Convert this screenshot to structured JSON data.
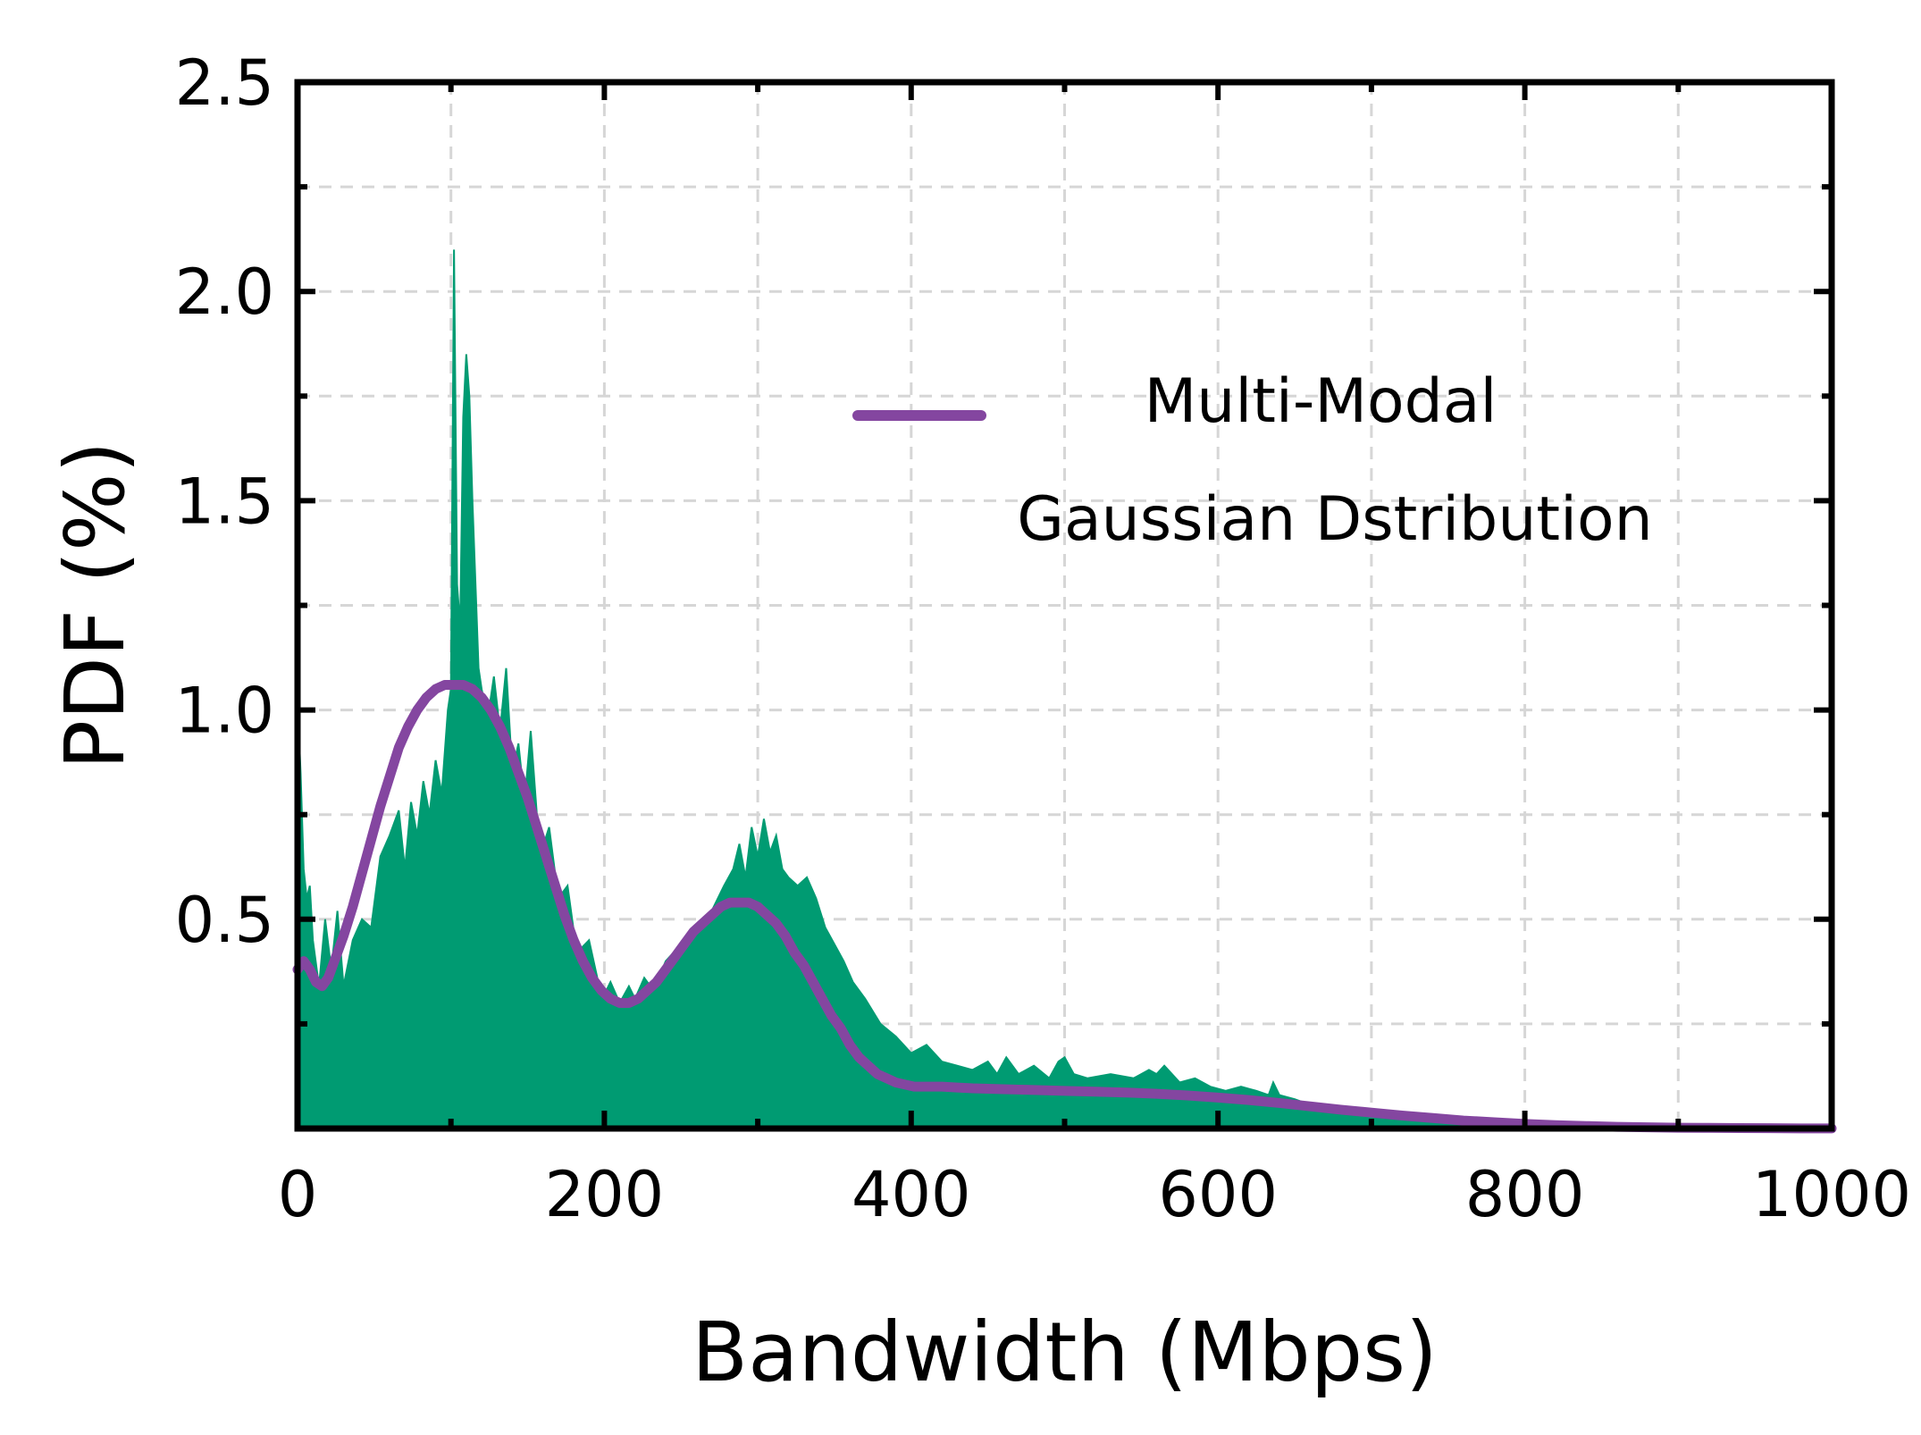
{
  "chart_data": {
    "type": "area",
    "xlabel": "Bandwidth (Mbps)",
    "ylabel": "PDF (%)",
    "xlim": [
      0,
      1000
    ],
    "ylim": [
      0,
      2.5
    ],
    "x_ticks": [
      0,
      200,
      400,
      600,
      800,
      1000
    ],
    "x_tick_labels": [
      "0",
      "200",
      "400",
      "600",
      "800",
      "1000"
    ],
    "y_ticks": [
      0.5,
      1.0,
      1.5,
      2.0,
      2.5
    ],
    "y_tick_labels": [
      "0.5",
      "1.0",
      "1.5",
      "2.0",
      "2.5"
    ],
    "grid": true,
    "legend_position": "top-right",
    "series": [
      {
        "kind": "filled-area",
        "color": "#009b72",
        "x": [
          0,
          2,
          4,
          6,
          8,
          10,
          14,
          18,
          22,
          26,
          30,
          36,
          42,
          48,
          54,
          60,
          66,
          70,
          74,
          78,
          82,
          86,
          90,
          94,
          98,
          100,
          102,
          104,
          106,
          108,
          110,
          112,
          114,
          116,
          118,
          120,
          124,
          128,
          132,
          136,
          140,
          144,
          148,
          152,
          158,
          164,
          170,
          176,
          182,
          190,
          196,
          200,
          204,
          210,
          216,
          220,
          226,
          232,
          240,
          250,
          260,
          270,
          278,
          284,
          288,
          292,
          296,
          300,
          304,
          308,
          312,
          316,
          320,
          326,
          332,
          338,
          344,
          350,
          356,
          362,
          370,
          380,
          390,
          400,
          410,
          420,
          430,
          440,
          450,
          456,
          462,
          470,
          480,
          490,
          496,
          500,
          506,
          515,
          530,
          545,
          555,
          560,
          565,
          575,
          585,
          595,
          605,
          615,
          625,
          633,
          636,
          640,
          650,
          665,
          680,
          700,
          740,
          800,
          860,
          920,
          1000
        ],
        "y": [
          1.02,
          0.85,
          0.62,
          0.55,
          0.58,
          0.45,
          0.34,
          0.5,
          0.38,
          0.52,
          0.34,
          0.45,
          0.5,
          0.48,
          0.65,
          0.7,
          0.76,
          0.62,
          0.78,
          0.7,
          0.83,
          0.75,
          0.88,
          0.8,
          1.0,
          1.05,
          2.1,
          1.3,
          1.2,
          1.7,
          1.85,
          1.75,
          1.5,
          1.3,
          1.1,
          1.05,
          0.98,
          1.08,
          0.95,
          1.1,
          0.85,
          0.92,
          0.78,
          0.95,
          0.65,
          0.72,
          0.55,
          0.58,
          0.42,
          0.45,
          0.35,
          0.32,
          0.35,
          0.3,
          0.34,
          0.31,
          0.36,
          0.33,
          0.4,
          0.44,
          0.48,
          0.52,
          0.58,
          0.62,
          0.68,
          0.6,
          0.72,
          0.65,
          0.74,
          0.66,
          0.7,
          0.62,
          0.6,
          0.58,
          0.6,
          0.55,
          0.48,
          0.44,
          0.4,
          0.35,
          0.31,
          0.25,
          0.22,
          0.18,
          0.2,
          0.16,
          0.15,
          0.14,
          0.16,
          0.13,
          0.17,
          0.13,
          0.15,
          0.12,
          0.16,
          0.17,
          0.13,
          0.12,
          0.13,
          0.12,
          0.14,
          0.13,
          0.15,
          0.11,
          0.12,
          0.1,
          0.09,
          0.1,
          0.09,
          0.08,
          0.11,
          0.08,
          0.07,
          0.05,
          0.04,
          0.03,
          0.015,
          0.008,
          0.004,
          0.002,
          0.0
        ]
      },
      {
        "kind": "line",
        "name": "Multi-Modal Gaussian Dstribution",
        "color": "#8446a0",
        "x": [
          0,
          4,
          8,
          12,
          16,
          20,
          24,
          30,
          36,
          42,
          48,
          54,
          60,
          66,
          72,
          78,
          84,
          90,
          96,
          102,
          108,
          114,
          120,
          126,
          132,
          138,
          144,
          150,
          156,
          162,
          168,
          174,
          180,
          186,
          192,
          198,
          204,
          210,
          216,
          222,
          228,
          234,
          240,
          246,
          252,
          258,
          264,
          270,
          276,
          282,
          288,
          294,
          300,
          306,
          312,
          318,
          324,
          330,
          336,
          342,
          348,
          354,
          360,
          366,
          372,
          378,
          384,
          390,
          396,
          402,
          410,
          420,
          430,
          440,
          450,
          460,
          470,
          480,
          490,
          500,
          520,
          540,
          560,
          580,
          600,
          620,
          640,
          660,
          680,
          700,
          720,
          740,
          760,
          780,
          800,
          820,
          840,
          860,
          880,
          900,
          920,
          940,
          960,
          980,
          1000
        ],
        "y": [
          0.38,
          0.4,
          0.38,
          0.35,
          0.34,
          0.36,
          0.4,
          0.46,
          0.53,
          0.61,
          0.69,
          0.77,
          0.84,
          0.91,
          0.96,
          1.0,
          1.03,
          1.05,
          1.06,
          1.06,
          1.06,
          1.05,
          1.03,
          1.0,
          0.96,
          0.91,
          0.85,
          0.79,
          0.72,
          0.65,
          0.58,
          0.51,
          0.45,
          0.4,
          0.36,
          0.33,
          0.31,
          0.3,
          0.3,
          0.31,
          0.33,
          0.35,
          0.38,
          0.41,
          0.44,
          0.47,
          0.49,
          0.51,
          0.53,
          0.54,
          0.54,
          0.54,
          0.53,
          0.51,
          0.49,
          0.46,
          0.42,
          0.39,
          0.35,
          0.31,
          0.27,
          0.24,
          0.2,
          0.17,
          0.15,
          0.13,
          0.12,
          0.11,
          0.105,
          0.1,
          0.1,
          0.1,
          0.098,
          0.096,
          0.095,
          0.094,
          0.093,
          0.092,
          0.091,
          0.09,
          0.088,
          0.086,
          0.083,
          0.079,
          0.074,
          0.068,
          0.061,
          0.053,
          0.045,
          0.038,
          0.031,
          0.025,
          0.019,
          0.015,
          0.011,
          0.008,
          0.006,
          0.004,
          0.003,
          0.002,
          0.0015,
          0.001,
          0.0007,
          0.0004,
          0.0002
        ]
      }
    ],
    "legend": {
      "line1": "Multi-Modal",
      "line2": "Gaussian Dstribution"
    }
  }
}
